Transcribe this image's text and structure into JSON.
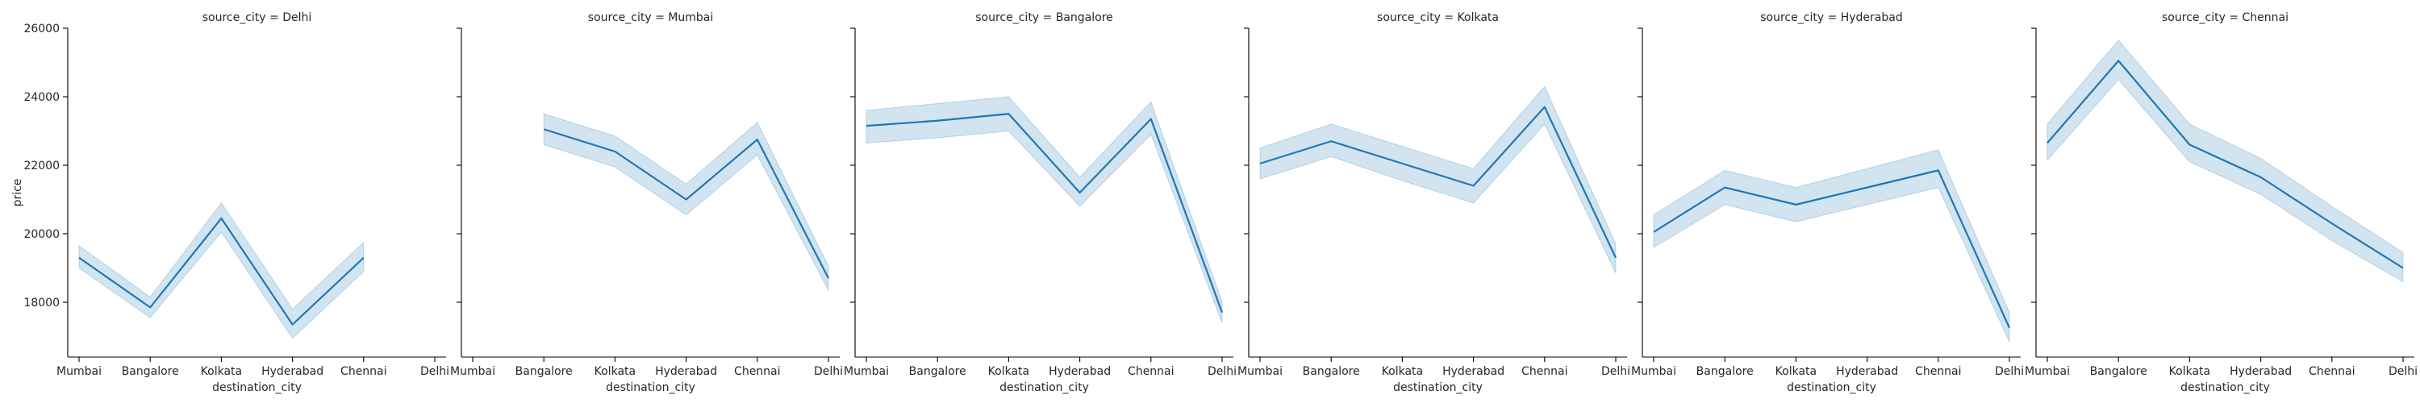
{
  "chart_data": {
    "type": "line",
    "layout": "facet-grid",
    "ylabel": "price",
    "xlabel": "destination_city",
    "categories": [
      "Mumbai",
      "Bangalore",
      "Kolkata",
      "Hyderabad",
      "Chennai",
      "Delhi"
    ],
    "ylim": [
      16400,
      26000
    ],
    "yticks": [
      18000,
      20000,
      22000,
      24000,
      26000
    ],
    "grid": false,
    "line_color": "#1f77b4",
    "band_color": "#1f77b4",
    "facets": [
      {
        "title": "source_city = Delhi",
        "values": [
          19300,
          17850,
          20450,
          17350,
          19300,
          null
        ],
        "ci_low": [
          19000,
          17550,
          20050,
          16950,
          18900,
          null
        ],
        "ci_high": [
          19650,
          18150,
          20900,
          17800,
          19750,
          null
        ]
      },
      {
        "title": "source_city = Mumbai",
        "values": [
          null,
          23050,
          22400,
          21000,
          22750,
          18700
        ],
        "ci_low": [
          null,
          22600,
          21950,
          20550,
          22300,
          18350
        ],
        "ci_high": [
          null,
          23500,
          22850,
          21450,
          23250,
          19050
        ]
      },
      {
        "title": "source_city = Bangalore",
        "values": [
          23150,
          23300,
          23500,
          21200,
          23350,
          17700
        ],
        "ci_low": [
          22650,
          22800,
          23000,
          20800,
          22900,
          17400
        ],
        "ci_high": [
          23600,
          23800,
          24000,
          21650,
          23850,
          18000
        ]
      },
      {
        "title": "source_city = Kolkata",
        "values": [
          22050,
          22700,
          22050,
          21400,
          23700,
          19300
        ],
        "ci_low": [
          21600,
          22250,
          21550,
          20900,
          23200,
          18850
        ],
        "ci_high": [
          22500,
          23200,
          22550,
          21900,
          24300,
          19700
        ]
      },
      {
        "title": "source_city = Hyderabad",
        "values": [
          20050,
          21350,
          20850,
          21350,
          21850,
          17250
        ],
        "ci_low": [
          19600,
          20850,
          20350,
          20850,
          21350,
          16850
        ],
        "ci_high": [
          20550,
          21850,
          21350,
          21900,
          22450,
          17700
        ]
      },
      {
        "title": "source_city = Chennai",
        "values": [
          22650,
          25050,
          22600,
          21650,
          20300,
          19000
        ],
        "ci_low": [
          22150,
          24500,
          22100,
          21150,
          19800,
          18600
        ],
        "ci_high": [
          23200,
          25650,
          23200,
          22200,
          20800,
          19450
        ]
      }
    ]
  }
}
